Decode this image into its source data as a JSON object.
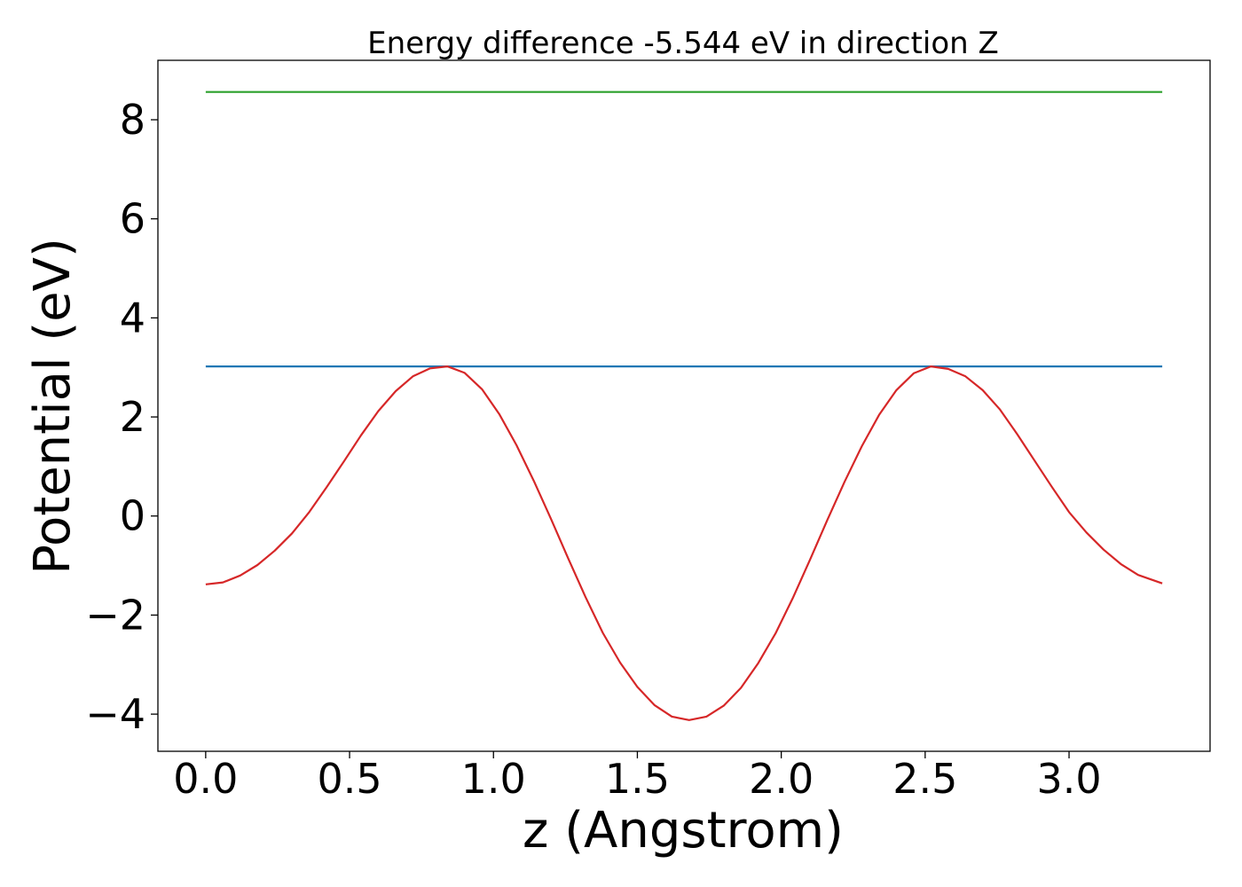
{
  "chart_data": {
    "type": "line",
    "title": "Energy difference -5.544 eV in direction Z",
    "xlabel": "z (Angstrom)",
    "ylabel": "Potential (eV)",
    "xlim": [
      -0.166,
      3.49
    ],
    "ylim": [
      -4.75,
      9.2
    ],
    "x_ticks": [
      {
        "value": 0.0,
        "label": "0.0"
      },
      {
        "value": 0.5,
        "label": "0.5"
      },
      {
        "value": 1.0,
        "label": "1.0"
      },
      {
        "value": 1.5,
        "label": "1.5"
      },
      {
        "value": 2.0,
        "label": "2.0"
      },
      {
        "value": 2.5,
        "label": "2.5"
      },
      {
        "value": 3.0,
        "label": "3.0"
      }
    ],
    "y_ticks": [
      {
        "value": -4,
        "label": "−4"
      },
      {
        "value": -2,
        "label": "−2"
      },
      {
        "value": 0,
        "label": "0"
      },
      {
        "value": 2,
        "label": "2"
      },
      {
        "value": 4,
        "label": "4"
      },
      {
        "value": 6,
        "label": "6"
      },
      {
        "value": 8,
        "label": "8"
      }
    ],
    "grid": false,
    "legend": "none",
    "series": [
      {
        "color": "#2ca02c",
        "style": "horizontal",
        "x": [
          0.0,
          3.324
        ],
        "values": [
          8.56,
          8.56
        ]
      },
      {
        "color": "#1f77b4",
        "style": "horizontal",
        "x": [
          0.0,
          3.324
        ],
        "values": [
          3.02,
          3.02
        ]
      },
      {
        "color": "#d62728",
        "style": "line",
        "x": [
          0.0,
          0.06,
          0.12,
          0.18,
          0.24,
          0.3,
          0.36,
          0.42,
          0.48,
          0.54,
          0.6,
          0.66,
          0.72,
          0.78,
          0.84,
          0.9,
          0.96,
          1.02,
          1.08,
          1.14,
          1.2,
          1.26,
          1.32,
          1.38,
          1.44,
          1.5,
          1.56,
          1.62,
          1.68,
          1.74,
          1.8,
          1.86,
          1.92,
          1.98,
          2.04,
          2.1,
          2.16,
          2.22,
          2.28,
          2.34,
          2.4,
          2.46,
          2.52,
          2.58,
          2.64,
          2.7,
          2.76,
          2.82,
          2.88,
          2.94,
          3.0,
          3.06,
          3.12,
          3.18,
          3.24,
          3.324
        ],
        "values": [
          -1.38,
          -1.34,
          -1.2,
          -0.99,
          -0.7,
          -0.35,
          0.08,
          0.58,
          1.1,
          1.63,
          2.12,
          2.52,
          2.82,
          2.98,
          3.02,
          2.89,
          2.56,
          2.06,
          1.43,
          0.71,
          -0.06,
          -0.86,
          -1.64,
          -2.36,
          -2.96,
          -3.45,
          -3.82,
          -4.05,
          -4.12,
          -4.05,
          -3.83,
          -3.47,
          -2.97,
          -2.37,
          -1.66,
          -0.88,
          -0.08,
          0.69,
          1.41,
          2.04,
          2.54,
          2.88,
          3.02,
          2.97,
          2.82,
          2.54,
          2.15,
          1.65,
          1.12,
          0.59,
          0.08,
          -0.33,
          -0.68,
          -0.97,
          -1.19,
          -1.36
        ]
      }
    ]
  }
}
